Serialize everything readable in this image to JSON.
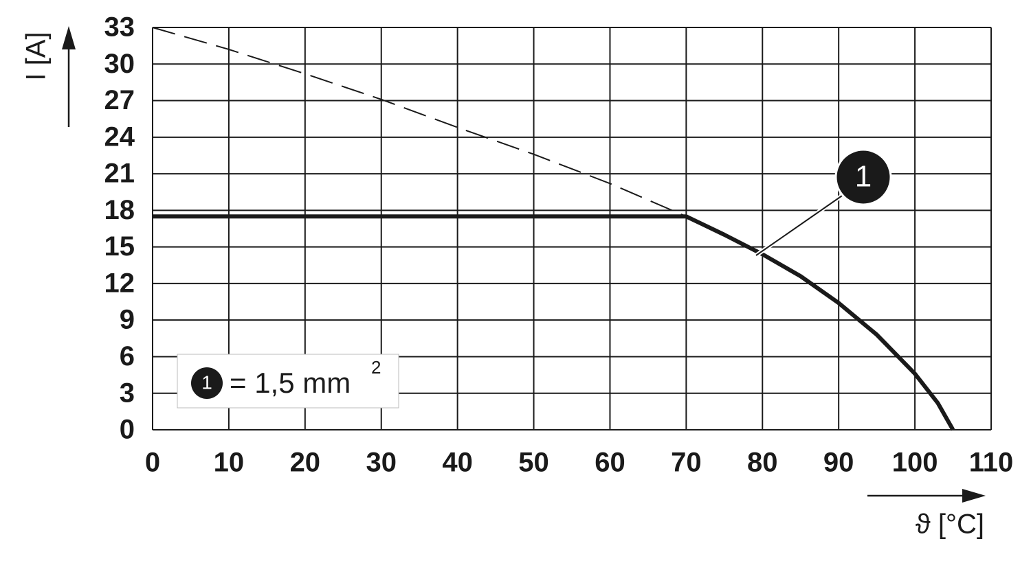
{
  "chart_data": {
    "type": "line",
    "y_label": "I [A]",
    "x_label": "ϑ [°C]",
    "xlim": [
      0,
      110
    ],
    "ylim": [
      0,
      33
    ],
    "xticks": [
      0,
      10,
      20,
      30,
      40,
      50,
      60,
      70,
      80,
      90,
      100,
      110
    ],
    "yticks": [
      0,
      3,
      6,
      9,
      12,
      15,
      18,
      21,
      24,
      27,
      30,
      33
    ],
    "grid": true,
    "series": [
      {
        "color": "#1a1a1a",
        "line_style": "dashed",
        "line_width": 2,
        "x": [
          0,
          10,
          20,
          30,
          40,
          50,
          60,
          70
        ],
        "values": [
          33,
          31.2,
          29.2,
          27.1,
          24.8,
          22.6,
          20.2,
          17.5
        ]
      },
      {
        "color": "#1a1a1a",
        "line_style": "solid",
        "line_width": 6,
        "x": [
          0,
          70,
          75,
          80,
          85,
          90,
          95,
          100,
          103,
          105
        ],
        "values": [
          17.5,
          17.5,
          16.0,
          14.4,
          12.6,
          10.4,
          7.8,
          4.6,
          2.2,
          0
        ]
      }
    ],
    "callout": "1",
    "legend_marker": "1",
    "legend_label": "= 1,5 mm",
    "legend_superscript": "2"
  }
}
